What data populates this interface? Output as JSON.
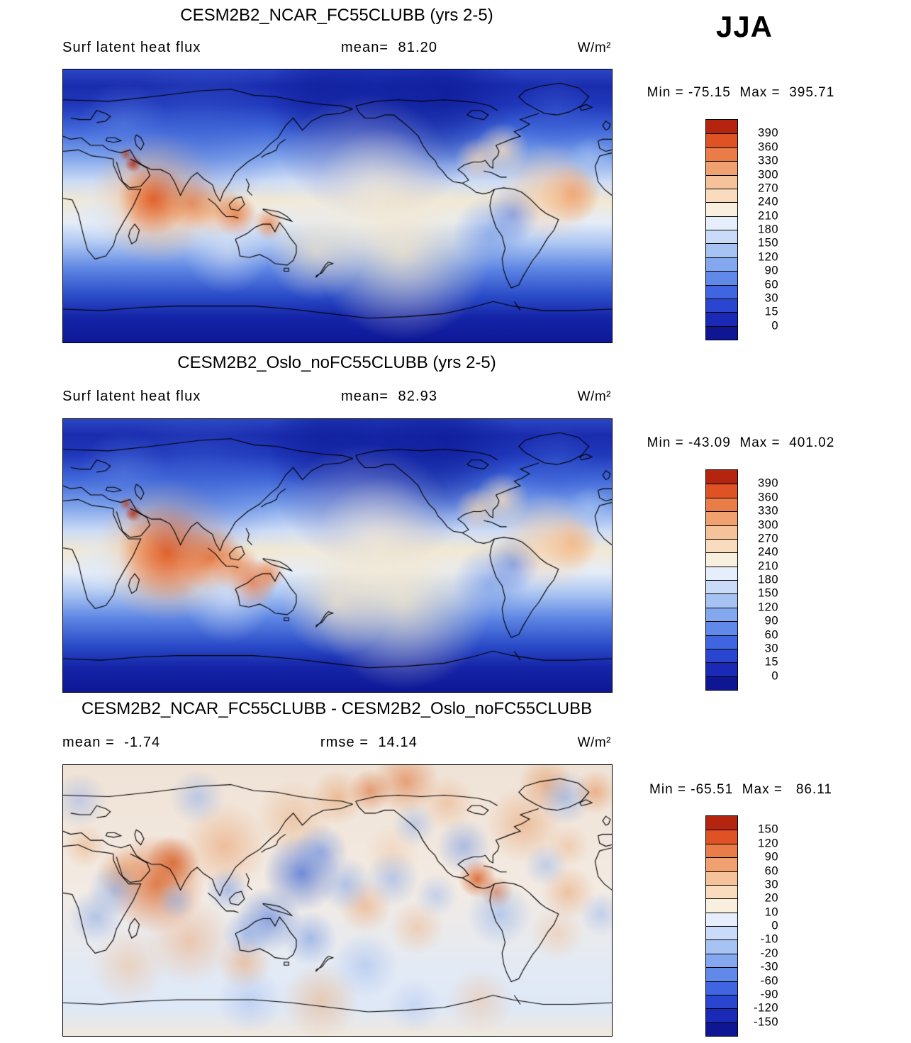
{
  "season": "JJA",
  "panels": [
    {
      "title": "CESM2B2_NCAR_FC55CLUBB (yrs 2-5)",
      "left_label": "Surf latent heat flux",
      "center_label": "mean=  81.20",
      "units": "W/m²",
      "minmax": "Min = -75.15  Max =  395.71"
    },
    {
      "title": "CESM2B2_Oslo_noFC55CLUBB (yrs 2-5)",
      "left_label": "Surf latent heat flux",
      "center_label": "mean=  82.93",
      "units": "W/m²",
      "minmax": "Min = -43.09  Max =  401.02"
    },
    {
      "title": "CESM2B2_NCAR_FC55CLUBB - CESM2B2_Oslo_noFC55CLUBB",
      "left_label": "mean =  -1.74",
      "center_label": "rmse =  14.14",
      "units": "W/m²",
      "minmax": "Min = -65.51  Max =   86.11"
    }
  ],
  "chart_data": [
    {
      "type": "heatmap",
      "subtype": "global-filled-contour-map",
      "title": "CESM2B2_NCAR_FC55CLUBB (yrs 2-5)",
      "variable": "Surf latent heat flux",
      "season": "JJA",
      "units": "W/m²",
      "mean": 81.2,
      "min": -75.15,
      "max": 395.71,
      "colorbar_levels": [
        0,
        15,
        30,
        60,
        90,
        120,
        150,
        180,
        210,
        240,
        270,
        300,
        330,
        360,
        390
      ],
      "palette_bottom_to_top": [
        "#0e1694",
        "#1b2ab6",
        "#2a46d0",
        "#3f66e0",
        "#6189ea",
        "#84a8f0",
        "#a6c3f4",
        "#c9dbf8",
        "#e6eefb",
        "#f9efdf",
        "#f9dcbe",
        "#f6c299",
        "#f1a170",
        "#ea7c47",
        "#de5224",
        "#b5240f"
      ],
      "projection": "equirectangular 0-360E, 90N-90S"
    },
    {
      "type": "heatmap",
      "subtype": "global-filled-contour-map",
      "title": "CESM2B2_Oslo_noFC55CLUBB (yrs 2-5)",
      "variable": "Surf latent heat flux",
      "season": "JJA",
      "units": "W/m²",
      "mean": 82.93,
      "min": -43.09,
      "max": 401.02,
      "colorbar_levels": [
        0,
        15,
        30,
        60,
        90,
        120,
        150,
        180,
        210,
        240,
        270,
        300,
        330,
        360,
        390
      ],
      "palette_bottom_to_top": [
        "#0e1694",
        "#1b2ab6",
        "#2a46d0",
        "#3f66e0",
        "#6189ea",
        "#84a8f0",
        "#a6c3f4",
        "#c9dbf8",
        "#e6eefb",
        "#f9efdf",
        "#f9dcbe",
        "#f6c299",
        "#f1a170",
        "#ea7c47",
        "#de5224",
        "#b5240f"
      ],
      "projection": "equirectangular 0-360E, 90N-90S"
    },
    {
      "type": "heatmap",
      "subtype": "global-filled-contour-difference-map",
      "title": "CESM2B2_NCAR_FC55CLUBB - CESM2B2_Oslo_noFC55CLUBB",
      "season": "JJA",
      "units": "W/m²",
      "mean": -1.74,
      "rmse": 14.14,
      "min": -65.51,
      "max": 86.11,
      "colorbar_levels": [
        -150,
        -120,
        -90,
        -60,
        -30,
        -20,
        -10,
        0,
        10,
        20,
        30,
        60,
        90,
        120,
        150
      ],
      "palette_bottom_to_top": [
        "#0e1694",
        "#1b2ab6",
        "#2a46d0",
        "#3f66e0",
        "#6189ea",
        "#84a8f0",
        "#a6c3f4",
        "#c9dbf8",
        "#e6eefb",
        "#f9efdf",
        "#f9dcbe",
        "#f6c299",
        "#f1a170",
        "#ea7c47",
        "#de5224",
        "#b5240f"
      ],
      "projection": "equirectangular 0-360E, 90N-90S"
    }
  ]
}
